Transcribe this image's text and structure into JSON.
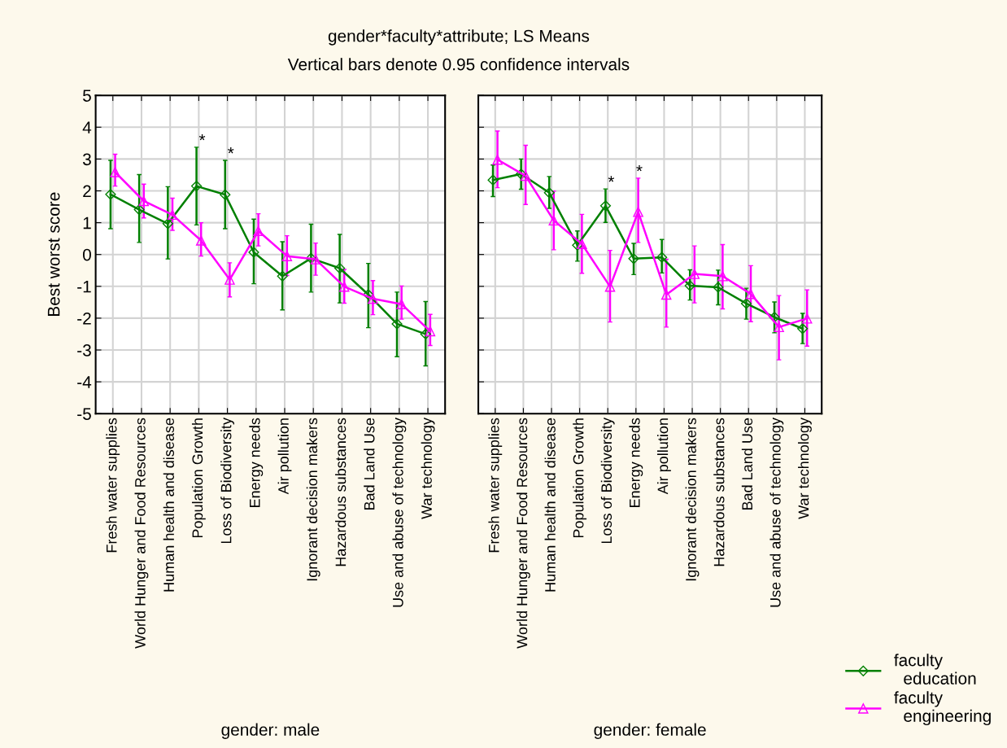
{
  "chart_data": [
    {
      "type": "line",
      "title": "gender*faculty*attribute; LS Means",
      "subtitle": "Vertical bars denote 0.95 confidence intervals",
      "xlabel": "gender: male",
      "ylabel": "Best worst score",
      "categories": [
        "Fresh water supplies",
        "World Hunger and Food Resources",
        "Human health and disease",
        "Population Growth",
        "Loss of Biodiversity",
        "Energy needs",
        "Air pollution",
        "Ignorant decision makers",
        "Hazardous substances",
        "Bad Land Use",
        "Use and abuse of technology",
        "War technology"
      ],
      "ylim": [
        -5,
        5
      ],
      "yticks": [
        -5,
        -4,
        -3,
        -2,
        -1,
        0,
        1,
        2,
        3,
        4,
        5
      ],
      "grid": true,
      "legend": "bottom right",
      "series": [
        {
          "name": "faculty\n  education",
          "color": "#008000",
          "marker": "diamond",
          "values": [
            1.89,
            1.41,
            0.97,
            2.15,
            1.88,
            0.07,
            -0.68,
            -0.12,
            -0.43,
            -1.26,
            -2.18,
            -2.5
          ],
          "errors": [
            [
              0.81,
              2.96
            ],
            [
              0.38,
              2.51
            ],
            [
              -0.14,
              2.13
            ],
            [
              0.93,
              3.37
            ],
            [
              0.81,
              2.96
            ],
            [
              -0.92,
              1.11
            ],
            [
              -1.74,
              0.4
            ],
            [
              -1.18,
              0.95
            ],
            [
              -1.52,
              0.63
            ],
            [
              -2.3,
              -0.28
            ],
            [
              -3.21,
              -1.18
            ],
            [
              -3.5,
              -1.48
            ]
          ]
        },
        {
          "name": "faculty\n  engineering",
          "color": "#ff00ff",
          "marker": "triangle",
          "values": [
            2.59,
            1.68,
            1.25,
            0.44,
            -0.79,
            0.74,
            -0.05,
            -0.15,
            -1.01,
            -1.39,
            -1.56,
            -2.41
          ],
          "errors": [
            [
              2.15,
              3.15
            ],
            [
              1.15,
              2.21
            ],
            [
              0.76,
              1.77
            ],
            [
              -0.05,
              1.0
            ],
            [
              -1.33,
              -0.26
            ],
            [
              0.27,
              1.28
            ],
            [
              -0.66,
              0.59
            ],
            [
              -0.65,
              0.36
            ],
            [
              -1.53,
              -0.47
            ],
            [
              -1.89,
              -0.82
            ],
            [
              -2.03,
              -0.99
            ],
            [
              -2.86,
              -1.88
            ]
          ]
        }
      ],
      "annotations": [
        {
          "text": "*",
          "x": "Population Growth",
          "y": 3.37
        },
        {
          "text": "*",
          "x": "Loss of Biodiversity",
          "y": 2.96
        }
      ]
    },
    {
      "type": "line",
      "xlabel": "gender: female",
      "categories": [
        "Fresh water supplies",
        "World Hunger and Food Resources",
        "Human health and disease",
        "Population Growth",
        "Loss of Biodiversity",
        "Energy needs",
        "Air pollution",
        "Ignorant decision makers",
        "Hazardous substances",
        "Bad Land Use",
        "Use and abuse of technology",
        "War technology"
      ],
      "ylim": [
        -5,
        5
      ],
      "yticks": [
        -5,
        -4,
        -3,
        -2,
        -1,
        0,
        1,
        2,
        3,
        4,
        5
      ],
      "grid": true,
      "tick_labels": "x",
      "series": [
        {
          "color": "#008000",
          "marker": "diamond",
          "values": [
            2.34,
            2.53,
            1.94,
            0.29,
            1.53,
            -0.13,
            -0.09,
            -0.98,
            -1.03,
            -1.54,
            -1.97,
            -2.33
          ],
          "errors": [
            [
              1.82,
              2.81
            ],
            [
              2.05,
              3.0
            ],
            [
              1.45,
              2.45
            ],
            [
              -0.21,
              0.74
            ],
            [
              1.01,
              2.06
            ],
            [
              -0.63,
              0.35
            ],
            [
              -0.58,
              0.47
            ],
            [
              -1.43,
              -0.48
            ],
            [
              -1.58,
              -0.49
            ],
            [
              -2.03,
              -1.06
            ],
            [
              -2.46,
              -1.49
            ],
            [
              -2.8,
              -1.85
            ]
          ]
        },
        {
          "color": "#ff00ff",
          "marker": "triangle",
          "values": [
            2.98,
            2.47,
            1.07,
            0.33,
            -1.01,
            1.34,
            -1.26,
            -0.61,
            -0.68,
            -1.24,
            -2.28,
            -2.01
          ],
          "errors": [
            [
              2.1,
              3.88
            ],
            [
              1.57,
              3.43
            ],
            [
              0.15,
              1.99
            ],
            [
              -0.59,
              1.26
            ],
            [
              -2.12,
              0.13
            ],
            [
              0.38,
              2.4
            ],
            [
              -2.28,
              -0.15
            ],
            [
              -1.52,
              0.27
            ],
            [
              -1.71,
              0.31
            ],
            [
              -2.11,
              -0.35
            ],
            [
              -3.31,
              -1.29
            ],
            [
              -2.88,
              -1.11
            ]
          ]
        }
      ],
      "annotations": [
        {
          "text": "*",
          "x": "Loss of Biodiversity",
          "y": 2.06
        },
        {
          "text": "*",
          "x": "Energy needs",
          "y": 2.4
        }
      ]
    }
  ]
}
